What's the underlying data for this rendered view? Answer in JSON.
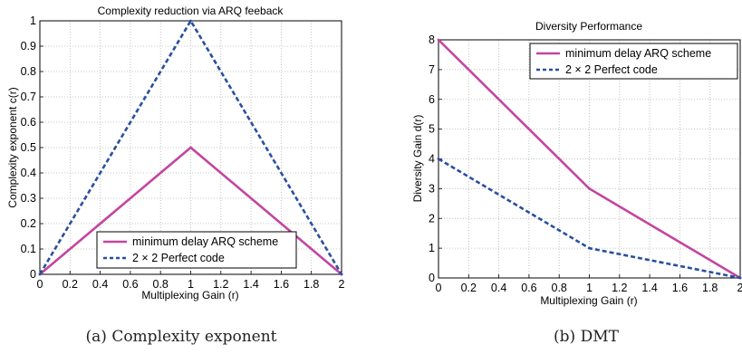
{
  "colors": {
    "solid_series": "#c3459f",
    "dashed_series": "#2a4fa0"
  },
  "chart_data": [
    {
      "type": "line",
      "title": "Complexity reduction via ARQ feeback",
      "xlabel": "Multiplexing Gain (r)",
      "ylabel": "Complexity exponent c(r)",
      "xlim": [
        0,
        2
      ],
      "ylim": [
        0,
        1
      ],
      "xticks": [
        "0",
        "0.2",
        "0.4",
        "0.6",
        "0.8",
        "1",
        "1.2",
        "1.4",
        "1.6",
        "1.8",
        "2"
      ],
      "yticks": [
        "0",
        "0.1",
        "0.2",
        "0.3",
        "0.4",
        "0.5",
        "0.6",
        "0.7",
        "0.8",
        "0.9",
        "1"
      ],
      "grid": true,
      "legend_position": "bottom-right",
      "series": [
        {
          "name": "minimum delay ARQ scheme",
          "style": "solid",
          "x": [
            0,
            1,
            2
          ],
          "y": [
            0,
            0.5,
            0
          ]
        },
        {
          "name": "2 × 2 Perfect code",
          "style": "dashed",
          "x": [
            0,
            1,
            2
          ],
          "y": [
            0,
            1,
            0
          ]
        }
      ],
      "caption": "(a) Complexity exponent"
    },
    {
      "type": "line",
      "title": "Diversity Performance",
      "xlabel": "Multiplexing Gain (r)",
      "ylabel": "Diversity Gain d(r)",
      "xlim": [
        0,
        2
      ],
      "ylim": [
        0,
        8
      ],
      "xticks": [
        "0",
        "0.2",
        "0.4",
        "0.6",
        "0.8",
        "1",
        "1.2",
        "1.4",
        "1.6",
        "1.8",
        "2"
      ],
      "yticks": [
        "0",
        "1",
        "2",
        "3",
        "4",
        "5",
        "6",
        "7",
        "8"
      ],
      "grid": true,
      "legend_position": "top-right",
      "series": [
        {
          "name": "minimum delay ARQ scheme",
          "style": "solid",
          "x": [
            0,
            1,
            2
          ],
          "y": [
            8,
            3,
            0
          ]
        },
        {
          "name": "2 × 2 Perfect code",
          "style": "dashed",
          "x": [
            0,
            1,
            2
          ],
          "y": [
            4,
            1,
            0
          ]
        }
      ],
      "caption": "(b) DMT"
    }
  ]
}
